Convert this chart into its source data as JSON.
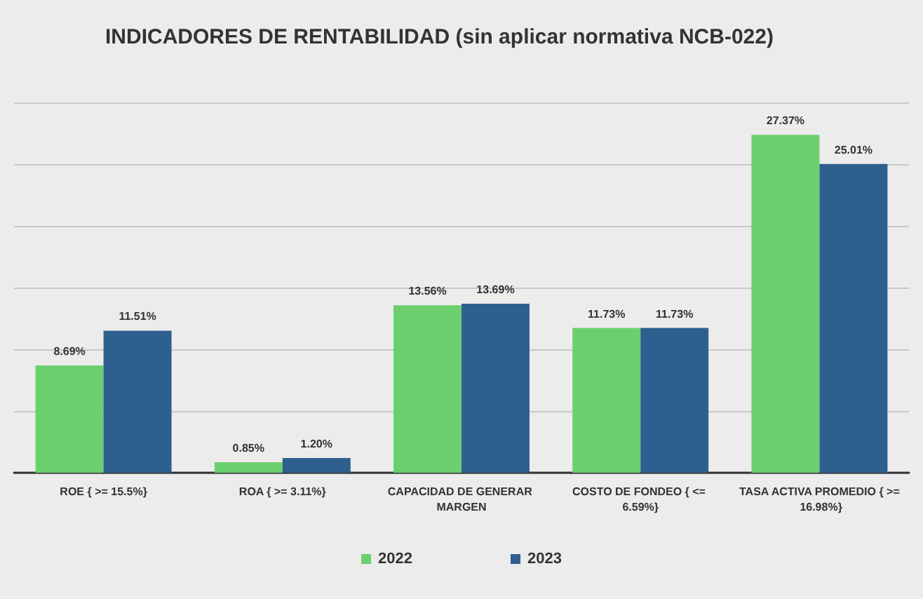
{
  "chart_data": {
    "type": "bar",
    "title": "INDICADORES DE RENTABILIDAD (sin aplicar normativa NCB-022)",
    "categories": [
      "ROE { >= 15.5%}",
      "ROA { >= 3.11%}",
      "CAPACIDAD DE GENERAR MARGEN",
      "COSTO DE FONDEO { <= 6.59%}",
      "TASA ACTIVA PROMEDIO { >= 16.98%}"
    ],
    "series": [
      {
        "name": "2022",
        "color": "#6ccf6e",
        "values": [
          8.69,
          0.85,
          13.56,
          11.73,
          27.37
        ],
        "value_labels": [
          "8.69%",
          "0.85%",
          "13.56%",
          "11.73%",
          "27.37%"
        ]
      },
      {
        "name": "2023",
        "color": "#2f5f8f",
        "values": [
          11.51,
          1.2,
          13.69,
          11.73,
          25.01
        ],
        "value_labels": [
          "11.51%",
          "1.20%",
          "13.69%",
          "11.73%",
          "25.01%"
        ]
      }
    ],
    "ylim": [
      0,
      30
    ],
    "yticks": [
      {
        "value": 0,
        "label": null
      },
      {
        "value": 5,
        "label": null
      },
      {
        "value": 10,
        "label": null
      },
      {
        "value": 15,
        "label": null
      },
      {
        "value": 20,
        "label": null
      },
      {
        "value": 25,
        "label": null
      },
      {
        "value": 30,
        "label": null
      }
    ],
    "grid": "y",
    "legend": "bottom",
    "tick_labels": "x"
  }
}
